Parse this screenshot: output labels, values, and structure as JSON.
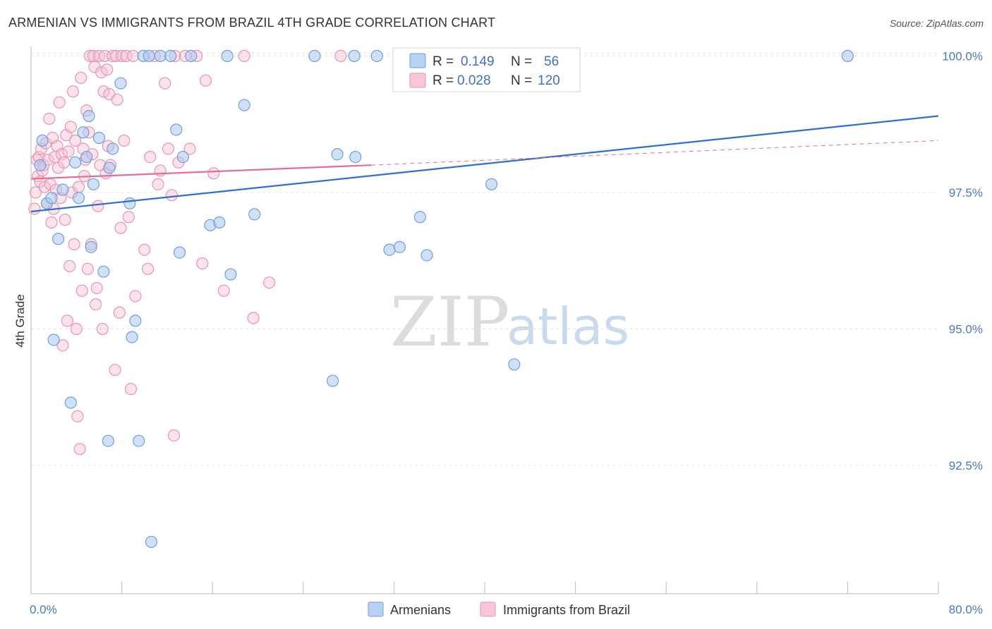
{
  "chart_data": {
    "type": "scatter",
    "title": "ARMENIAN VS IMMIGRANTS FROM BRAZIL 4TH GRADE CORRELATION CHART",
    "source": "Source: ZipAtlas.com",
    "xlabel": "",
    "ylabel": "4th Grade",
    "xlim": [
      0,
      80
    ],
    "ylim": [
      90.2,
      100.2
    ],
    "x_tick_labels": [
      "0.0%",
      "80.0%"
    ],
    "y_ticks": [
      {
        "value": 100.0,
        "label": "100.0%"
      },
      {
        "value": 97.5,
        "label": "97.5%"
      },
      {
        "value": 95.0,
        "label": "95.0%"
      },
      {
        "value": 92.5,
        "label": "92.5%"
      }
    ],
    "watermark": {
      "zip": "ZIP",
      "atlas": "atlas"
    },
    "legend": [
      {
        "name": "Armenians",
        "r_label": "R =",
        "r_value": "0.149",
        "n_label": "N =",
        "n_value": "56"
      },
      {
        "name": "Immigrants from Brazil",
        "r_label": "R =",
        "r_value": "0.028",
        "n_label": "N =",
        "n_value": "120"
      }
    ],
    "colors": {
      "armenians_fill": "#aac8f0",
      "armenians_stroke": "#6f9fdc",
      "armenians_line": "#2f6fcf",
      "brazil_fill": "#f7c0d2",
      "brazil_stroke": "#ea93b2",
      "brazil_line": "#e46d96",
      "grid": "#e2e2e2",
      "axis": "#bbbbbb",
      "tick_text": "#4a78c2"
    },
    "series": [
      {
        "name": "Armenians",
        "trend": {
          "x": [
            0,
            80
          ],
          "y": [
            97.15,
            98.9
          ]
        },
        "points": [
          {
            "x": 1.0,
            "y": 98.45
          },
          {
            "x": 0.8,
            "y": 98.0
          },
          {
            "x": 1.4,
            "y": 97.3
          },
          {
            "x": 1.8,
            "y": 97.4
          },
          {
            "x": 2.4,
            "y": 96.65
          },
          {
            "x": 2.0,
            "y": 94.8
          },
          {
            "x": 2.8,
            "y": 97.55
          },
          {
            "x": 3.5,
            "y": 93.65
          },
          {
            "x": 3.9,
            "y": 98.05
          },
          {
            "x": 4.2,
            "y": 97.4
          },
          {
            "x": 4.6,
            "y": 98.6
          },
          {
            "x": 4.9,
            "y": 98.15
          },
          {
            "x": 5.1,
            "y": 98.9
          },
          {
            "x": 5.3,
            "y": 96.5
          },
          {
            "x": 5.5,
            "y": 97.65
          },
          {
            "x": 6.0,
            "y": 98.5
          },
          {
            "x": 6.4,
            "y": 96.05
          },
          {
            "x": 6.8,
            "y": 92.95
          },
          {
            "x": 6.9,
            "y": 97.95
          },
          {
            "x": 7.2,
            "y": 98.3
          },
          {
            "x": 7.9,
            "y": 99.5
          },
          {
            "x": 8.7,
            "y": 97.3
          },
          {
            "x": 8.9,
            "y": 94.85
          },
          {
            "x": 9.2,
            "y": 95.15
          },
          {
            "x": 9.5,
            "y": 92.95
          },
          {
            "x": 9.9,
            "y": 100.0
          },
          {
            "x": 10.4,
            "y": 100.0
          },
          {
            "x": 10.6,
            "y": 91.1
          },
          {
            "x": 11.4,
            "y": 100.0
          },
          {
            "x": 12.3,
            "y": 100.0
          },
          {
            "x": 12.8,
            "y": 98.65
          },
          {
            "x": 13.1,
            "y": 96.4
          },
          {
            "x": 13.4,
            "y": 98.15
          },
          {
            "x": 14.1,
            "y": 100.0
          },
          {
            "x": 15.8,
            "y": 96.9
          },
          {
            "x": 16.6,
            "y": 96.95
          },
          {
            "x": 17.3,
            "y": 100.0
          },
          {
            "x": 17.6,
            "y": 96.0
          },
          {
            "x": 18.8,
            "y": 99.1
          },
          {
            "x": 19.7,
            "y": 97.1
          },
          {
            "x": 25.0,
            "y": 100.0
          },
          {
            "x": 26.6,
            "y": 94.05
          },
          {
            "x": 27.0,
            "y": 98.2
          },
          {
            "x": 28.5,
            "y": 100.0
          },
          {
            "x": 28.6,
            "y": 98.15
          },
          {
            "x": 30.5,
            "y": 100.0
          },
          {
            "x": 31.6,
            "y": 96.45
          },
          {
            "x": 32.5,
            "y": 96.5
          },
          {
            "x": 34.3,
            "y": 97.05
          },
          {
            "x": 34.9,
            "y": 96.35
          },
          {
            "x": 40.6,
            "y": 97.65
          },
          {
            "x": 42.6,
            "y": 94.35
          },
          {
            "x": 72.0,
            "y": 100.0
          }
        ]
      },
      {
        "name": "Immigrants from Brazil",
        "trend": {
          "x": [
            0,
            30
          ],
          "y": [
            97.75,
            98.0
          ]
        },
        "trend_dashed": {
          "x": [
            30,
            80
          ],
          "y": [
            98.0,
            98.45
          ]
        },
        "points": [
          {
            "x": 0.3,
            "y": 97.2
          },
          {
            "x": 0.4,
            "y": 97.5
          },
          {
            "x": 0.5,
            "y": 98.1
          },
          {
            "x": 0.6,
            "y": 97.8
          },
          {
            "x": 0.7,
            "y": 98.15
          },
          {
            "x": 0.8,
            "y": 97.7
          },
          {
            "x": 0.9,
            "y": 98.3
          },
          {
            "x": 1.0,
            "y": 97.9
          },
          {
            "x": 1.1,
            "y": 98.0
          },
          {
            "x": 1.2,
            "y": 97.6
          },
          {
            "x": 1.3,
            "y": 98.4
          },
          {
            "x": 1.4,
            "y": 97.3
          },
          {
            "x": 1.5,
            "y": 98.1
          },
          {
            "x": 1.6,
            "y": 98.85
          },
          {
            "x": 1.7,
            "y": 97.65
          },
          {
            "x": 1.8,
            "y": 96.95
          },
          {
            "x": 1.9,
            "y": 98.5
          },
          {
            "x": 2.0,
            "y": 97.2
          },
          {
            "x": 2.1,
            "y": 98.15
          },
          {
            "x": 2.2,
            "y": 97.55
          },
          {
            "x": 2.3,
            "y": 98.35
          },
          {
            "x": 2.4,
            "y": 97.95
          },
          {
            "x": 2.5,
            "y": 99.15
          },
          {
            "x": 2.6,
            "y": 97.4
          },
          {
            "x": 2.7,
            "y": 98.2
          },
          {
            "x": 2.8,
            "y": 94.7
          },
          {
            "x": 2.9,
            "y": 98.05
          },
          {
            "x": 3.0,
            "y": 97.0
          },
          {
            "x": 3.1,
            "y": 98.55
          },
          {
            "x": 3.2,
            "y": 95.15
          },
          {
            "x": 3.3,
            "y": 98.25
          },
          {
            "x": 3.4,
            "y": 96.15
          },
          {
            "x": 3.5,
            "y": 98.7
          },
          {
            "x": 3.6,
            "y": 97.5
          },
          {
            "x": 3.7,
            "y": 99.35
          },
          {
            "x": 3.8,
            "y": 96.55
          },
          {
            "x": 3.9,
            "y": 98.45
          },
          {
            "x": 4.0,
            "y": 95.0
          },
          {
            "x": 4.1,
            "y": 93.4
          },
          {
            "x": 4.2,
            "y": 97.6
          },
          {
            "x": 4.3,
            "y": 92.8
          },
          {
            "x": 4.4,
            "y": 99.6
          },
          {
            "x": 4.5,
            "y": 95.7
          },
          {
            "x": 4.6,
            "y": 98.3
          },
          {
            "x": 4.7,
            "y": 97.8
          },
          {
            "x": 4.8,
            "y": 98.1
          },
          {
            "x": 4.9,
            "y": 99.0
          },
          {
            "x": 5.0,
            "y": 96.1
          },
          {
            "x": 5.1,
            "y": 98.6
          },
          {
            "x": 5.2,
            "y": 100.0
          },
          {
            "x": 5.3,
            "y": 96.55
          },
          {
            "x": 5.4,
            "y": 98.2
          },
          {
            "x": 5.5,
            "y": 100.0
          },
          {
            "x": 5.6,
            "y": 99.8
          },
          {
            "x": 5.7,
            "y": 95.45
          },
          {
            "x": 5.8,
            "y": 95.75
          },
          {
            "x": 5.9,
            "y": 97.25
          },
          {
            "x": 6.0,
            "y": 100.0
          },
          {
            "x": 6.1,
            "y": 98.0
          },
          {
            "x": 6.2,
            "y": 99.7
          },
          {
            "x": 6.3,
            "y": 95.0
          },
          {
            "x": 6.4,
            "y": 99.35
          },
          {
            "x": 6.5,
            "y": 100.0
          },
          {
            "x": 6.6,
            "y": 97.85
          },
          {
            "x": 6.7,
            "y": 99.75
          },
          {
            "x": 6.8,
            "y": 98.35
          },
          {
            "x": 6.9,
            "y": 99.3
          },
          {
            "x": 7.0,
            "y": 98.0
          },
          {
            "x": 7.2,
            "y": 100.0
          },
          {
            "x": 7.4,
            "y": 94.25
          },
          {
            "x": 7.5,
            "y": 100.0
          },
          {
            "x": 7.6,
            "y": 99.2
          },
          {
            "x": 7.8,
            "y": 95.3
          },
          {
            "x": 7.9,
            "y": 96.85
          },
          {
            "x": 8.0,
            "y": 100.0
          },
          {
            "x": 8.2,
            "y": 98.45
          },
          {
            "x": 8.4,
            "y": 100.0
          },
          {
            "x": 8.6,
            "y": 97.05
          },
          {
            "x": 8.8,
            "y": 93.9
          },
          {
            "x": 9.0,
            "y": 100.0
          },
          {
            "x": 9.2,
            "y": 95.6
          },
          {
            "x": 10.0,
            "y": 96.45
          },
          {
            "x": 10.3,
            "y": 96.1
          },
          {
            "x": 10.5,
            "y": 98.15
          },
          {
            "x": 10.9,
            "y": 100.0
          },
          {
            "x": 11.2,
            "y": 97.65
          },
          {
            "x": 11.4,
            "y": 97.9
          },
          {
            "x": 11.8,
            "y": 99.5
          },
          {
            "x": 12.1,
            "y": 98.3
          },
          {
            "x": 12.4,
            "y": 97.45
          },
          {
            "x": 12.6,
            "y": 93.05
          },
          {
            "x": 12.7,
            "y": 100.0
          },
          {
            "x": 13.0,
            "y": 98.05
          },
          {
            "x": 13.6,
            "y": 100.0
          },
          {
            "x": 14.0,
            "y": 98.3
          },
          {
            "x": 14.6,
            "y": 100.0
          },
          {
            "x": 15.1,
            "y": 96.2
          },
          {
            "x": 15.4,
            "y": 99.55
          },
          {
            "x": 16.1,
            "y": 97.85
          },
          {
            "x": 17.0,
            "y": 95.7
          },
          {
            "x": 18.8,
            "y": 100.0
          },
          {
            "x": 19.6,
            "y": 95.2
          },
          {
            "x": 21.0,
            "y": 95.85
          },
          {
            "x": 27.3,
            "y": 100.0
          }
        ]
      }
    ]
  }
}
